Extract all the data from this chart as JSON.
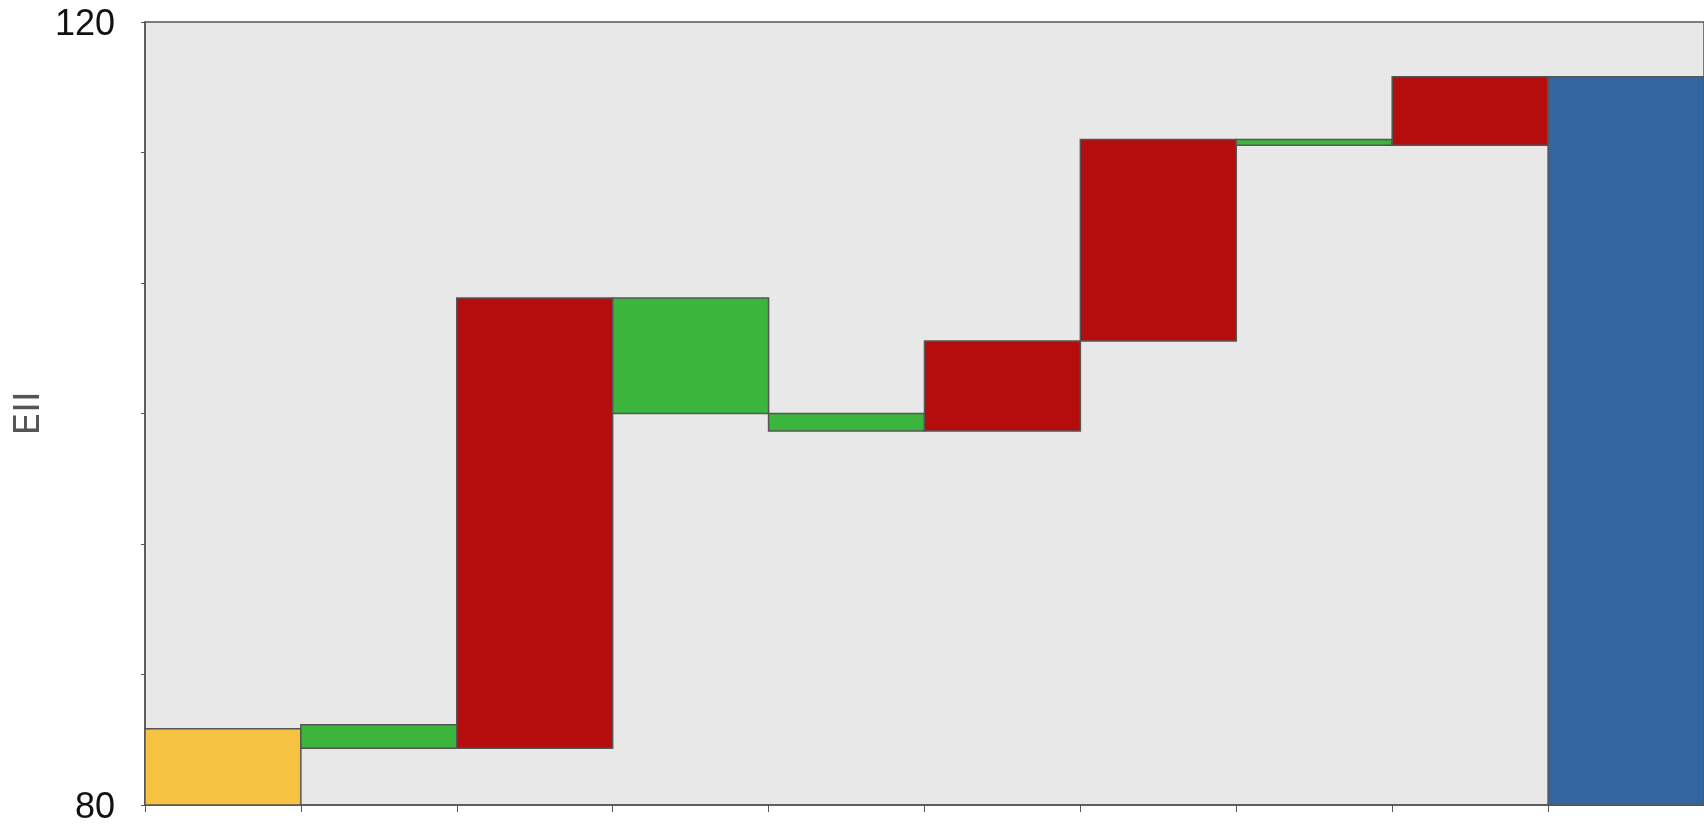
{
  "chart_data": {
    "type": "bar",
    "ylabel": "EII",
    "categories": [
      null,
      null,
      null,
      null,
      null,
      null,
      null,
      null,
      null,
      null
    ],
    "base": [
      80,
      84.1,
      82.9,
      105.9,
      100.0,
      99.1,
      103.7,
      114.0,
      113.7,
      80
    ],
    "values": [
      3.9,
      -1.2,
      23.0,
      -5.9,
      -0.9,
      4.6,
      10.3,
      -0.3,
      3.5,
      37.2
    ],
    "colors": [
      "#f5c242",
      "#3bb53b",
      "#b50c0c",
      "#3bb53b",
      "#3bb53b",
      "#b50c0c",
      "#b50c0c",
      "#3bb53b",
      "#b50c0c",
      "#3366a0"
    ],
    "ylim": [
      80,
      120
    ],
    "yticks": [
      80,
      {
        "value": 86.67,
        "label": null
      },
      {
        "value": 93.33,
        "label": null
      },
      {
        "value": 100,
        "label": null
      },
      {
        "value": 106.67,
        "label": null
      },
      {
        "value": 113.33,
        "label": null
      },
      120
    ],
    "grid": false
  }
}
